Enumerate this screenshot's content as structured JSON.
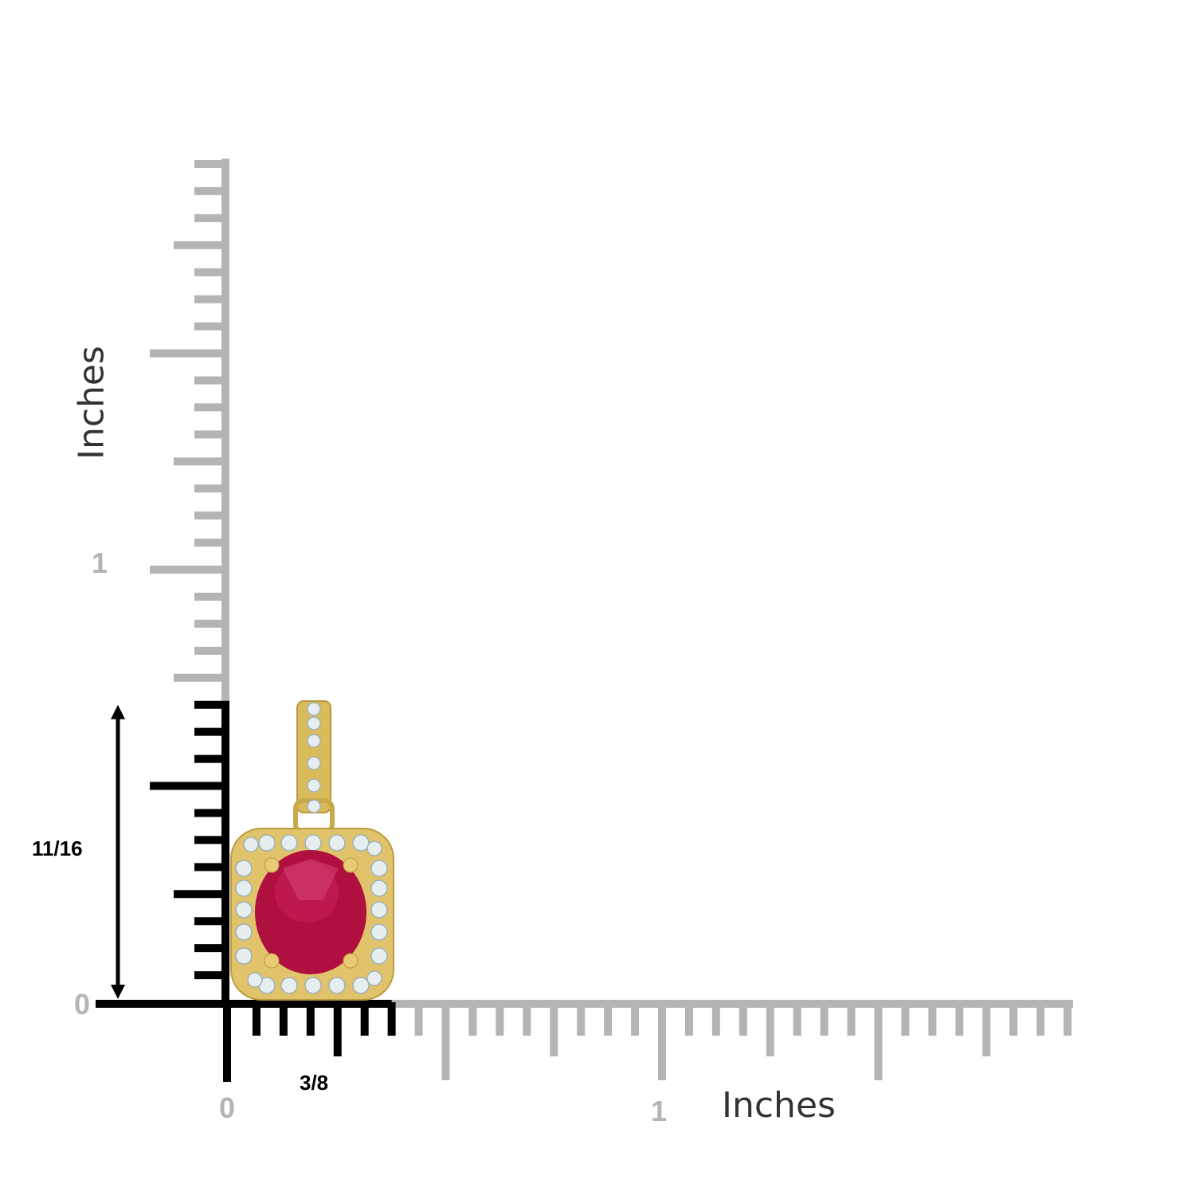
{
  "rulers": {
    "vertical": {
      "unit_label": "Inches",
      "tick_labels": [
        "0",
        "1"
      ],
      "measured_label": "11/16",
      "measured_inches": 0.6875,
      "length_inches": 1.95
    },
    "horizontal": {
      "unit_label": "Inches",
      "tick_labels": [
        "0",
        "1"
      ],
      "measured_label": "3/8",
      "measured_inches": 0.375,
      "length_inches": 1.95
    },
    "subdivision": 16
  },
  "colors": {
    "ruler_gray": "#b4b4b4",
    "ruler_black": "#000000",
    "gold": "#e0c36a",
    "ruby": "#b0103f",
    "diamond": "#e6eef0"
  },
  "product": {
    "icon": "ruby-halo-pendant"
  }
}
